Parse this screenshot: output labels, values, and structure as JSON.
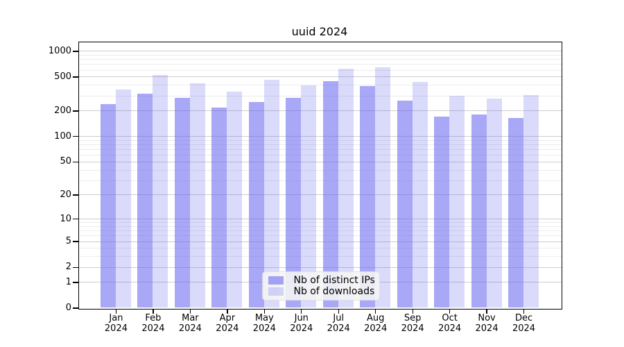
{
  "chart_data": {
    "type": "bar",
    "title": "uuid 2024",
    "x_tick_months": [
      "Jan",
      "Feb",
      "Mar",
      "Apr",
      "May",
      "Jun",
      "Jul",
      "Aug",
      "Sep",
      "Oct",
      "Nov",
      "Dec"
    ],
    "x_tick_year": "2024",
    "series": [
      {
        "name": "Nb of distinct IPs",
        "color": "rgba(100,100,240,0.56)",
        "values": [
          240,
          313,
          280,
          218,
          250,
          280,
          442,
          390,
          263,
          170,
          179,
          164
        ]
      },
      {
        "name": "Nb of downloads",
        "color": "rgba(100,100,240,0.24)",
        "values": [
          354,
          522,
          420,
          331,
          458,
          399,
          618,
          649,
          438,
          299,
          278,
          307
        ]
      }
    ],
    "yscale": "log1p",
    "ylim": [
      0,
      1260
    ],
    "y_major_ticks": [
      1000,
      500,
      200,
      100,
      50,
      20,
      10,
      5,
      2,
      1,
      0
    ],
    "y_minor_gridlines": [
      3,
      4,
      6,
      7,
      8,
      9,
      30,
      40,
      60,
      70,
      80,
      90,
      300,
      400,
      600,
      700,
      800,
      900
    ],
    "grid": true,
    "legend_position": "lower center"
  },
  "colors": {
    "background": "#ffffff",
    "axis": "#000000",
    "major_grid": "#cdcdcd",
    "minor_grid": "#ececec",
    "bar_base": "#6464f0",
    "legend_bg": "rgba(245,245,245,0.88)"
  }
}
